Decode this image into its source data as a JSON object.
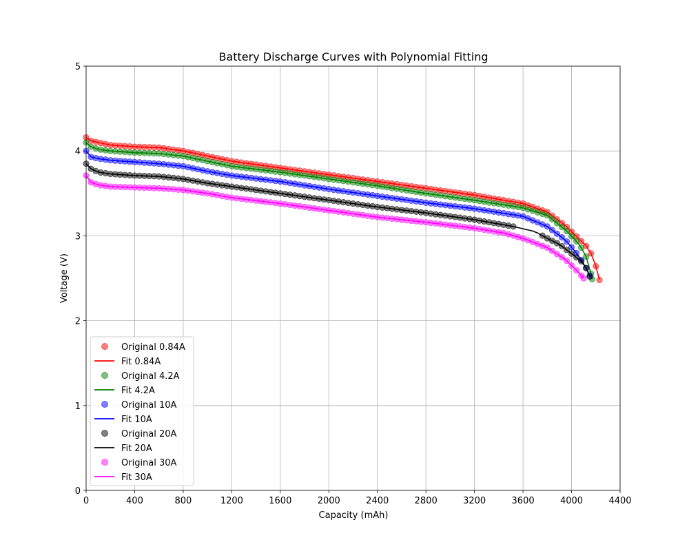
{
  "chart_data": {
    "type": "scatter",
    "title": "Battery Discharge Curves with Polynomial Fitting",
    "xlabel": "Capacity (mAh)",
    "ylabel": "Voltage (V)",
    "xlim": [
      0,
      4400
    ],
    "ylim": [
      0,
      5
    ],
    "xticks": [
      0,
      400,
      800,
      1200,
      1600,
      2000,
      2400,
      2800,
      3200,
      3600,
      4000,
      4400
    ],
    "yticks": [
      0,
      1,
      2,
      3,
      4,
      5
    ],
    "grid": true,
    "legend_position": "lower-left",
    "legend": [
      "Original 0.84A",
      "Fit 0.84A",
      "Original 4.2A",
      "Fit 4.2A",
      "Original 10A",
      "Fit 10A",
      "Original 20A",
      "Fit 20A",
      "Original 30A",
      "Fit 30A"
    ],
    "series": [
      {
        "current": "0.84A",
        "original_label": "Original 0.84A",
        "fit_label": "Fit 0.84A",
        "color": "#ff0000",
        "capacity_max": 4230,
        "anchors": [
          [
            0,
            4.16
          ],
          [
            40,
            4.12
          ],
          [
            100,
            4.1
          ],
          [
            200,
            4.07
          ],
          [
            400,
            4.05
          ],
          [
            600,
            4.04
          ],
          [
            800,
            4.0
          ],
          [
            1000,
            3.94
          ],
          [
            1200,
            3.88
          ],
          [
            1600,
            3.8
          ],
          [
            2000,
            3.72
          ],
          [
            2400,
            3.64
          ],
          [
            2800,
            3.56
          ],
          [
            3200,
            3.48
          ],
          [
            3600,
            3.38
          ],
          [
            3800,
            3.28
          ],
          [
            3950,
            3.12
          ],
          [
            4050,
            2.98
          ],
          [
            4120,
            2.88
          ],
          [
            4180,
            2.75
          ],
          [
            4230,
            2.48
          ]
        ]
      },
      {
        "current": "4.2A",
        "original_label": "Original 4.2A",
        "fit_label": "Fit 4.2A",
        "color": "#008000",
        "capacity_max": 4170,
        "anchors": [
          [
            0,
            4.1
          ],
          [
            40,
            4.05
          ],
          [
            100,
            4.02
          ],
          [
            200,
            4.0
          ],
          [
            400,
            3.98
          ],
          [
            600,
            3.97
          ],
          [
            800,
            3.94
          ],
          [
            1000,
            3.88
          ],
          [
            1200,
            3.82
          ],
          [
            1600,
            3.75
          ],
          [
            2000,
            3.67
          ],
          [
            2400,
            3.59
          ],
          [
            2800,
            3.5
          ],
          [
            3200,
            3.42
          ],
          [
            3600,
            3.33
          ],
          [
            3800,
            3.24
          ],
          [
            3950,
            3.07
          ],
          [
            4050,
            2.92
          ],
          [
            4110,
            2.8
          ],
          [
            4150,
            2.62
          ],
          [
            4170,
            2.49
          ]
        ]
      },
      {
        "current": "10A",
        "original_label": "Original 10A",
        "fit_label": "Fit 10A",
        "color": "#0000ff",
        "capacity_max": 4150,
        "anchors": [
          [
            0,
            4.0
          ],
          [
            40,
            3.93
          ],
          [
            100,
            3.91
          ],
          [
            200,
            3.89
          ],
          [
            400,
            3.87
          ],
          [
            600,
            3.85
          ],
          [
            800,
            3.82
          ],
          [
            1000,
            3.76
          ],
          [
            1200,
            3.71
          ],
          [
            1600,
            3.64
          ],
          [
            2000,
            3.55
          ],
          [
            2400,
            3.47
          ],
          [
            2800,
            3.39
          ],
          [
            3200,
            3.32
          ],
          [
            3600,
            3.23
          ],
          [
            3800,
            3.11
          ],
          [
            3950,
            2.95
          ],
          [
            4050,
            2.78
          ],
          [
            4110,
            2.65
          ],
          [
            4150,
            2.53
          ]
        ]
      },
      {
        "current": "20A",
        "original_label": "Original 20A",
        "fit_label": "Fit 20A",
        "color": "#000000",
        "capacity_max": 4150,
        "fit_only_from": 3520,
        "anchors": [
          [
            0,
            3.85
          ],
          [
            40,
            3.79
          ],
          [
            100,
            3.75
          ],
          [
            200,
            3.73
          ],
          [
            400,
            3.71
          ],
          [
            600,
            3.7
          ],
          [
            800,
            3.67
          ],
          [
            1000,
            3.62
          ],
          [
            1200,
            3.58
          ],
          [
            1600,
            3.5
          ],
          [
            2000,
            3.42
          ],
          [
            2400,
            3.34
          ],
          [
            2800,
            3.27
          ],
          [
            3200,
            3.19
          ],
          [
            3520,
            3.11
          ],
          [
            3700,
            3.05
          ],
          [
            3800,
            2.97
          ],
          [
            3900,
            2.9
          ],
          [
            4000,
            2.79
          ],
          [
            4080,
            2.7
          ],
          [
            4130,
            2.6
          ],
          [
            4150,
            2.52
          ]
        ]
      },
      {
        "current": "30A",
        "original_label": "Original 30A",
        "fit_label": "Fit 30A",
        "color": "#ff00ff",
        "capacity_max": 4100,
        "anchors": [
          [
            0,
            3.71
          ],
          [
            40,
            3.63
          ],
          [
            100,
            3.6
          ],
          [
            200,
            3.58
          ],
          [
            400,
            3.57
          ],
          [
            600,
            3.56
          ],
          [
            800,
            3.54
          ],
          [
            1000,
            3.5
          ],
          [
            1200,
            3.45
          ],
          [
            1600,
            3.38
          ],
          [
            2000,
            3.3
          ],
          [
            2400,
            3.22
          ],
          [
            2800,
            3.16
          ],
          [
            3200,
            3.09
          ],
          [
            3450,
            3.03
          ],
          [
            3600,
            2.97
          ],
          [
            3800,
            2.86
          ],
          [
            3950,
            2.72
          ],
          [
            4050,
            2.58
          ],
          [
            4100,
            2.5
          ]
        ]
      }
    ]
  }
}
